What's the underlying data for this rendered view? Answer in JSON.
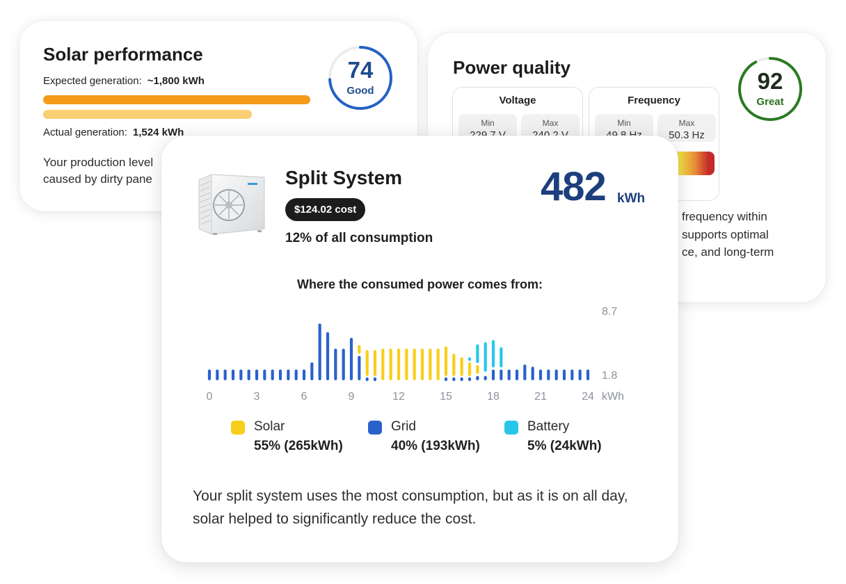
{
  "solar": {
    "title": "Solar performance",
    "expected_label": "Expected generation:",
    "expected_value": "~1,800 kWh",
    "actual_label": "Actual generation:",
    "actual_value": "1,524 kWh",
    "description": "Your production level",
    "description_line2": "caused by dirty pane",
    "score": "74",
    "score_label": "Good",
    "score_fraction": 0.74,
    "colors": {
      "expected": "#f59a19",
      "actual": "#f8cf72",
      "gauge": "#2462c4"
    }
  },
  "power": {
    "title": "Power quality",
    "score": "92",
    "score_label": "Great",
    "score_fraction": 0.92,
    "voltage": {
      "title": "Voltage",
      "min_label": "Min",
      "min_value": "229.7 V",
      "max_label": "Max",
      "max_value": "240.2 V"
    },
    "frequency": {
      "title": "Frequency",
      "min_label": "Min",
      "min_value": "49.8 Hz",
      "max_label": "Max",
      "max_value": "50.3 Hz"
    },
    "description_lines": [
      "frequency within",
      "supports optimal",
      "ce, and long-term"
    ],
    "colors": {
      "gauge": "#2a7a22"
    }
  },
  "split": {
    "title": "Split System",
    "cost": "$124.02 cost",
    "share": "12% of all consumption",
    "energy_value": "482",
    "energy_unit": "kWh",
    "chart_title": "Where the consumed power comes from:",
    "legend": [
      {
        "name": "Solar",
        "value": "55% (265kWh)",
        "color": "#f7ce1a"
      },
      {
        "name": "Grid",
        "value": "40% (193kWh)",
        "color": "#2a62cc"
      },
      {
        "name": "Battery",
        "value": "5% (24kWh)",
        "color": "#28c7ea"
      }
    ],
    "description": "Your split system uses the most consumption, but as it is on all day, solar helped to significantly reduce the cost."
  },
  "chart_data": {
    "type": "bar",
    "title": "Where the consumed power comes from:",
    "x_ticks": [
      "0",
      "3",
      "6",
      "9",
      "12",
      "15",
      "18",
      "21",
      "24"
    ],
    "x_unit": "kWh",
    "y_ticks": [
      "1.8",
      "8.7"
    ],
    "ylim": [
      0,
      8.7
    ],
    "stacked": true,
    "x": [
      0,
      0.5,
      1,
      1.5,
      2,
      2.5,
      3,
      3.5,
      4,
      4.5,
      5,
      5.5,
      6,
      6.5,
      7,
      7.5,
      8,
      8.5,
      9,
      9.5,
      10,
      10.5,
      11,
      11.5,
      12,
      12.5,
      13,
      13.5,
      14,
      14.5,
      15,
      15.5,
      16,
      16.5,
      17,
      17.5,
      18,
      18.5,
      19,
      19.5,
      20,
      20.5,
      21,
      21.5,
      22,
      22.5,
      23,
      23.5,
      24
    ],
    "series": [
      {
        "name": "Solar",
        "color": "#f7ce1a",
        "values": [
          0,
          0,
          0,
          0,
          0,
          0,
          0,
          0,
          0,
          0,
          0,
          0,
          0,
          0,
          0,
          0,
          0,
          0,
          0.3,
          1.5,
          3.9,
          3.9,
          4.4,
          4.4,
          4.4,
          4.4,
          4.4,
          4.4,
          4.4,
          4.4,
          4.4,
          3.4,
          2.9,
          2.2,
          1.5,
          0.3,
          0,
          0,
          0,
          0,
          0,
          0,
          0,
          0,
          0,
          0,
          0,
          0,
          0
        ]
      },
      {
        "name": "Grid",
        "color": "#2a62cc",
        "values": [
          1.5,
          1.5,
          1.5,
          1.5,
          1.5,
          1.5,
          1.5,
          1.5,
          1.5,
          1.5,
          1.5,
          1.5,
          1.5,
          2.5,
          7.9,
          6.7,
          4.4,
          4.4,
          5.9,
          3.4,
          0.3,
          0.3,
          0,
          0,
          0,
          0,
          0,
          0,
          0,
          0,
          0.3,
          0.3,
          0.3,
          0.3,
          0.6,
          0.6,
          1.5,
          1.5,
          1.5,
          1.5,
          2.2,
          1.9,
          1.5,
          1.5,
          1.5,
          1.5,
          1.5,
          1.5,
          1.5
        ]
      },
      {
        "name": "Battery",
        "color": "#28c7ea",
        "values": [
          0,
          0,
          0,
          0,
          0,
          0,
          0,
          0,
          0,
          0,
          0,
          0,
          0,
          0,
          0,
          0,
          0,
          0,
          0,
          0,
          0,
          0,
          0,
          0,
          0,
          0,
          0,
          0,
          0,
          0,
          0,
          0,
          0.3,
          0.6,
          2.9,
          4.4,
          4.1,
          3.1,
          0,
          0,
          0,
          0,
          0,
          0,
          0,
          0,
          0,
          0,
          0
        ]
      }
    ]
  }
}
